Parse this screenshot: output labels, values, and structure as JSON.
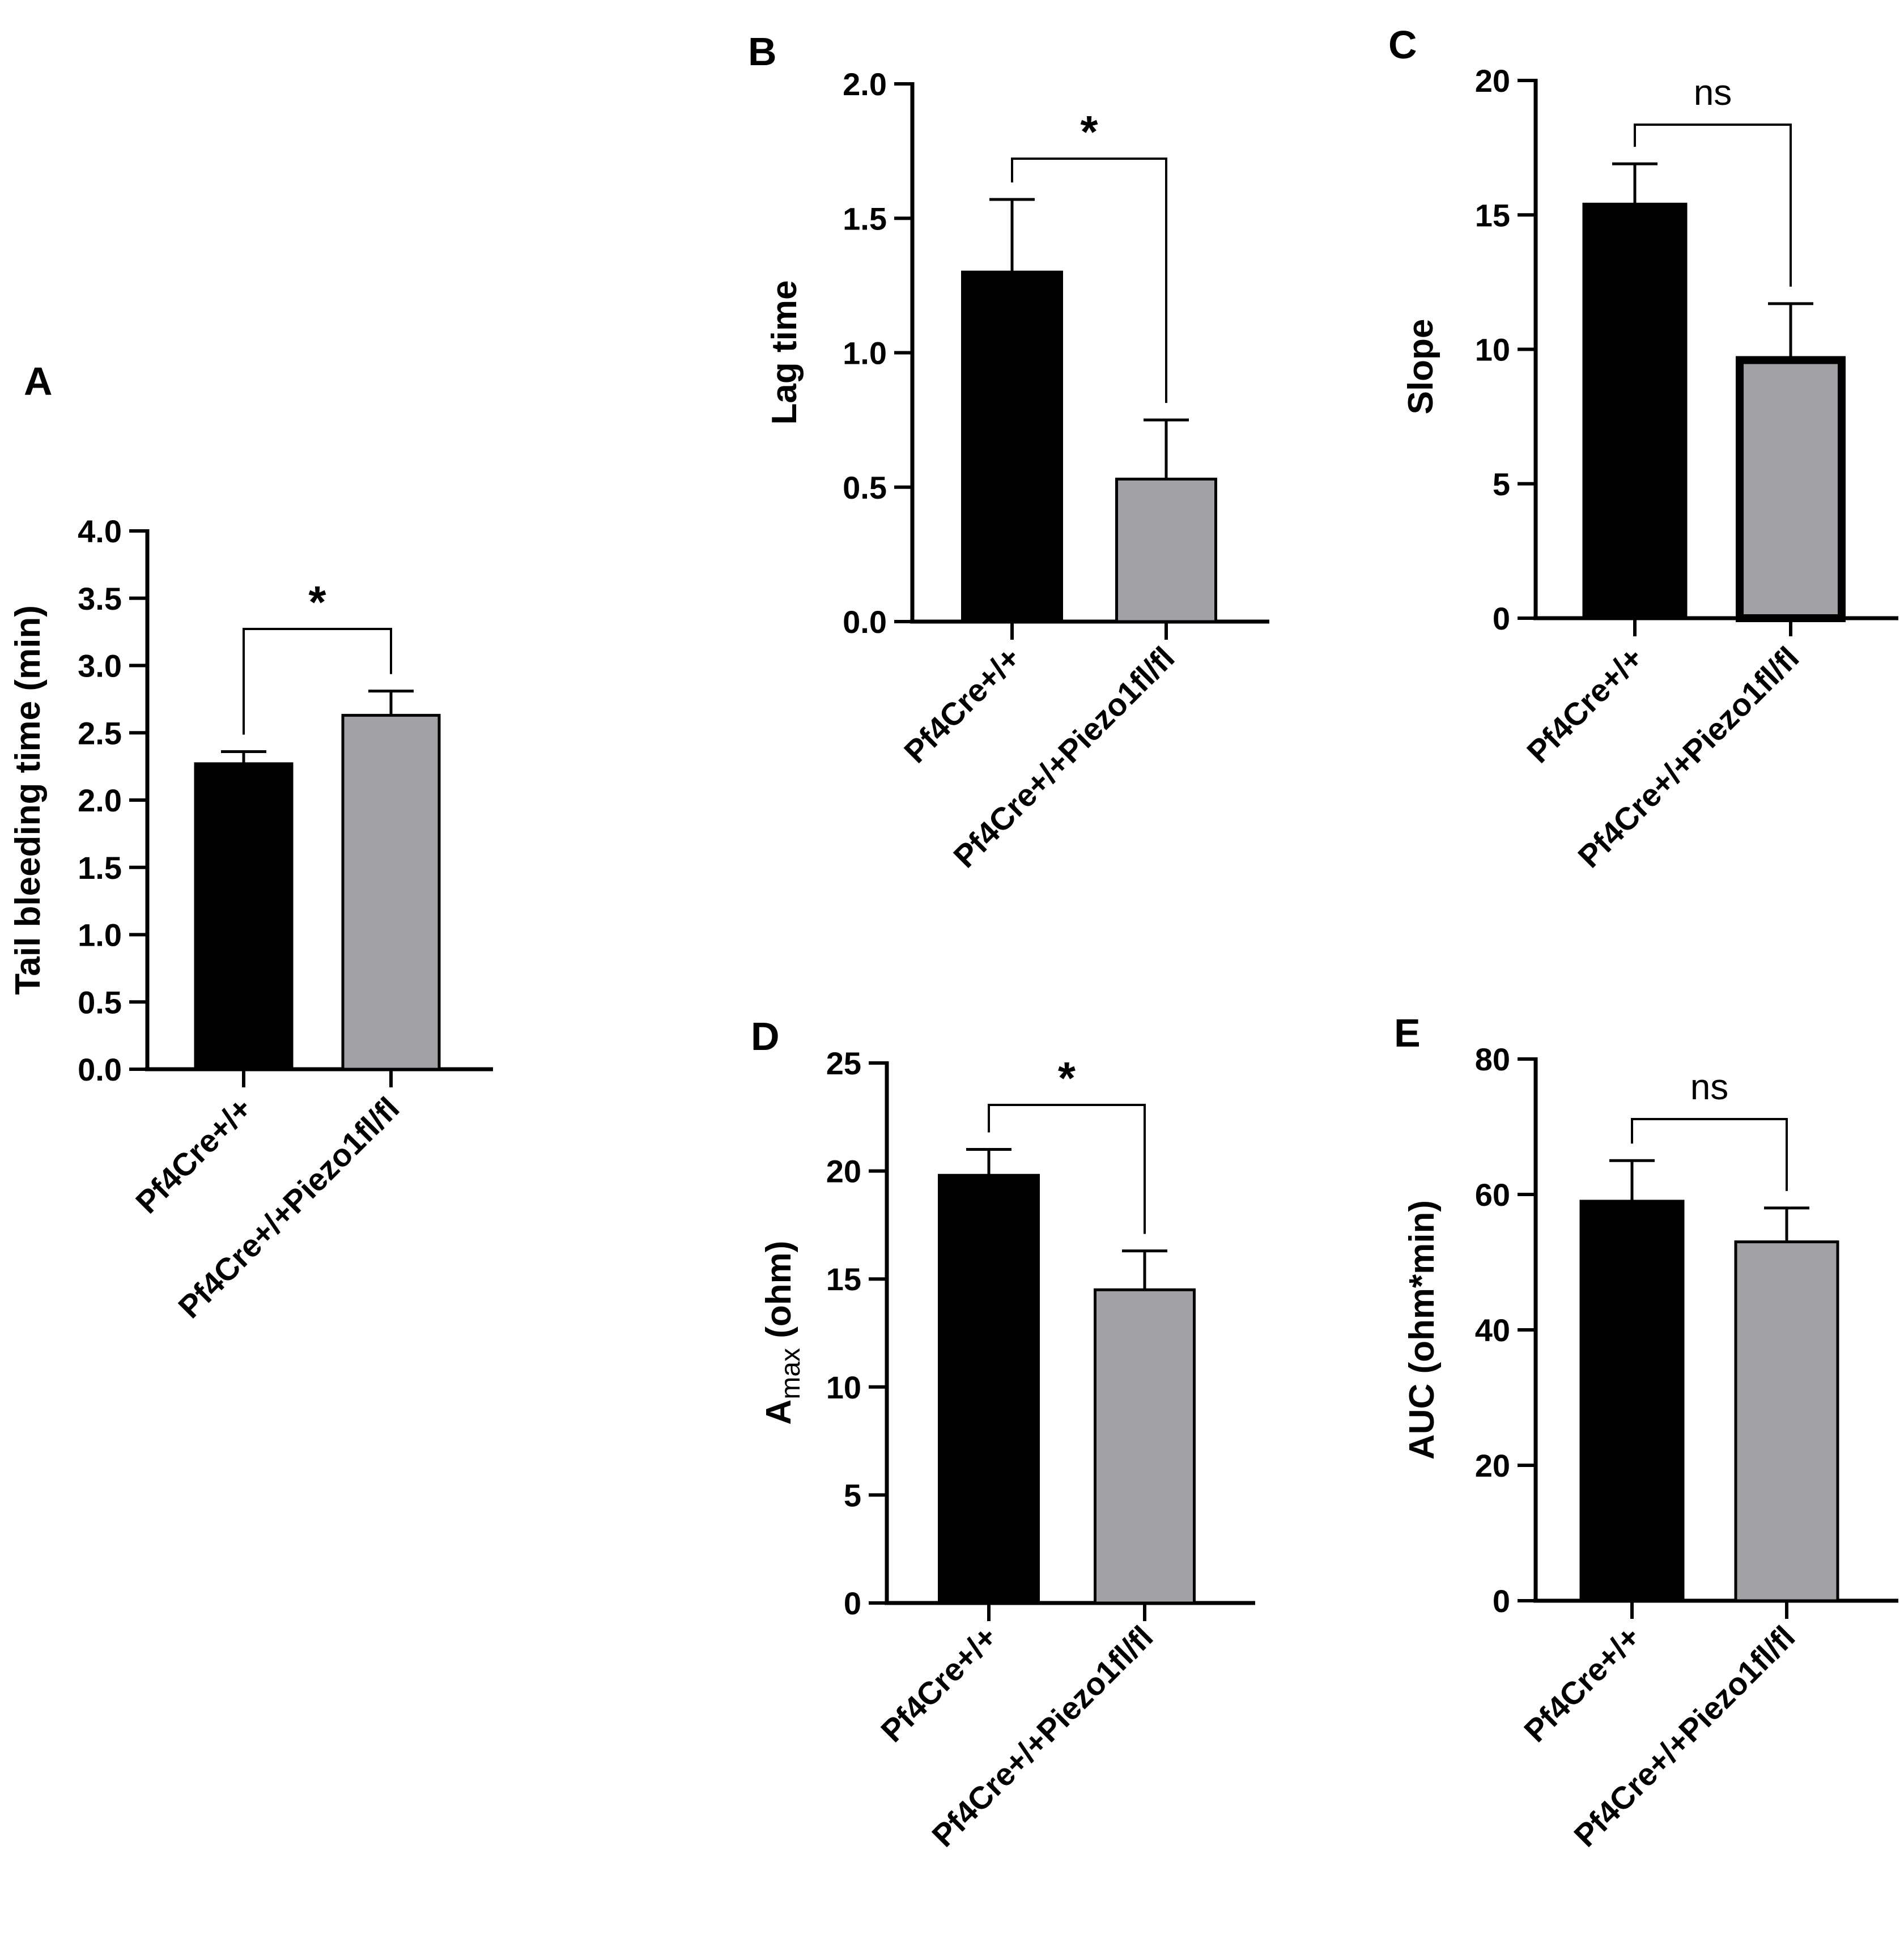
{
  "colors": {
    "group1": "#000000",
    "group2": "#a2a1a5",
    "axis": "#000000"
  },
  "chart_data": [
    {
      "panel": "A",
      "type": "bar",
      "categories": [
        "Pf4Cre+/+",
        "Pf4Cre+/+Piezo1fl/fl"
      ],
      "values": [
        2.27,
        2.63
      ],
      "errors": [
        0.09,
        0.18
      ],
      "ylabel": "Tail bleeding time (min)",
      "ylabel_sub": "",
      "ylim": [
        0,
        4
      ],
      "yticks": [
        "0.0",
        "0.5",
        "1.0",
        "1.5",
        "2.0",
        "2.5",
        "3.0",
        "3.5",
        "4.0"
      ],
      "significance": "*"
    },
    {
      "panel": "B",
      "type": "bar",
      "categories": [
        "Pf4Cre+/+",
        "Pf4Cre+/+Piezo1fl/fl"
      ],
      "values": [
        1.3,
        0.53
      ],
      "errors": [
        0.27,
        0.22
      ],
      "ylabel": "Lag time",
      "ylabel_sub": "",
      "ylim": [
        0,
        2
      ],
      "yticks": [
        "0.0",
        "0.5",
        "1.0",
        "1.5",
        "2.0"
      ],
      "significance": "*"
    },
    {
      "panel": "C",
      "type": "bar",
      "categories": [
        "Pf4Cre+/+",
        "Pf4Cre+/+Piezo1fl/fl"
      ],
      "values": [
        15.4,
        9.6
      ],
      "errors": [
        1.5,
        2.1
      ],
      "ylabel": "Slope",
      "ylabel_sub": "",
      "ylim": [
        0,
        20
      ],
      "yticks": [
        "0",
        "5",
        "10",
        "15",
        "20"
      ],
      "significance": "ns"
    },
    {
      "panel": "D",
      "type": "bar",
      "categories": [
        "Pf4Cre+/+",
        "Pf4Cre+/+Piezo1fl/fl"
      ],
      "values": [
        19.8,
        14.5
      ],
      "errors": [
        1.2,
        1.8
      ],
      "ylabel": "A",
      "ylabel_sub": "max",
      "ylabel_suffix": " (ohm)",
      "ylim": [
        0,
        25
      ],
      "yticks": [
        "0",
        "5",
        "10",
        "15",
        "20",
        "25"
      ],
      "significance": "*"
    },
    {
      "panel": "E",
      "type": "bar",
      "categories": [
        "Pf4Cre+/+",
        "Pf4Cre+/+Piezo1fl/fl"
      ],
      "values": [
        59,
        53
      ],
      "errors": [
        6,
        5
      ],
      "ylabel": "AUC (ohm*min)",
      "ylabel_sub": "",
      "ylim": [
        0,
        80
      ],
      "yticks": [
        "0",
        "20",
        "40",
        "60",
        "80"
      ],
      "significance": "ns"
    }
  ]
}
